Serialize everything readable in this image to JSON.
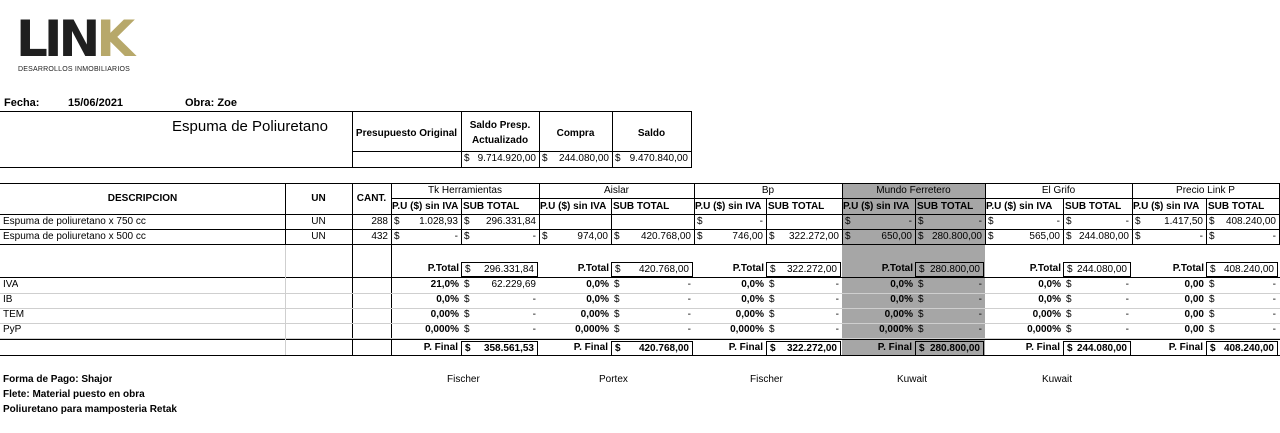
{
  "logo": {
    "brand_main": "LIN",
    "brand_accent": "K",
    "subtitle": "DESARROLLOS INMOBILIARIOS"
  },
  "header": {
    "fecha_label": "Fecha:",
    "fecha_value": "15/06/2021",
    "obra": "Obra: Zoe"
  },
  "title": "Espuma de Poliuretano",
  "budget": {
    "headers": [
      "Presupuesto Original",
      "Saldo Presp. Actualizado",
      "Compra",
      "Saldo"
    ],
    "values": [
      "",
      "9.714.920,00",
      "244.080,00",
      "9.470.840,00"
    ]
  },
  "table": {
    "col_desc": "DESCRIPCION",
    "col_un": "UN",
    "col_cant": "CANT.",
    "sub_pu": "P.U ($) sin IVA",
    "sub_total": "SUB TOTAL",
    "currency": "$",
    "suppliers": [
      "Tk Herramientas",
      "Aislar",
      "Bp",
      "Mundo Ferretero",
      "El Grifo",
      "Precio Link P"
    ],
    "rows": [
      {
        "desc": "Espuma de poliuretano x 750 cc",
        "un": "UN",
        "cant": "288",
        "cells": [
          [
            "1.028,93",
            "296.331,84"
          ],
          [
            "",
            ""
          ],
          [
            "-",
            ""
          ],
          [
            "-",
            "-"
          ],
          [
            "-",
            "-"
          ],
          [
            "1.417,50",
            "408.240,00"
          ]
        ]
      },
      {
        "desc": "Espuma de poliuretano x 500 cc",
        "un": "UN",
        "cant": "432",
        "cells": [
          [
            "-",
            "-"
          ],
          [
            "974,00",
            "420.768,00"
          ],
          [
            "746,00",
            "322.272,00"
          ],
          [
            "650,00",
            "280.800,00"
          ],
          [
            "565,00",
            "244.080,00"
          ],
          [
            "-",
            "-"
          ]
        ]
      }
    ],
    "ptotal_label": "P.Total",
    "ptotals": [
      "296.331,84",
      "420.768,00",
      "322.272,00",
      "280.800,00",
      "244.080,00",
      "408.240,00"
    ],
    "taxes": [
      {
        "name": "IVA",
        "rates": [
          "21,0%",
          "0,0%",
          "0,0%",
          "0,0%",
          "0,0%",
          "0,00"
        ],
        "amounts": [
          "62.229,69",
          "-",
          "-",
          "-",
          "-",
          "-"
        ]
      },
      {
        "name": "IB",
        "rates": [
          "0,0%",
          "0,0%",
          "0,0%",
          "0,0%",
          "0,0%",
          "0,00"
        ],
        "amounts": [
          "-",
          "-",
          "-",
          "-",
          "-",
          "-"
        ]
      },
      {
        "name": "TEM",
        "rates": [
          "0,00%",
          "0,00%",
          "0,00%",
          "0,00%",
          "0,00%",
          "0,00"
        ],
        "amounts": [
          "-",
          "-",
          "-",
          "-",
          "-",
          "-"
        ]
      },
      {
        "name": "PyP",
        "rates": [
          "0,000%",
          "0,000%",
          "0,000%",
          "0,000%",
          "0,000%",
          "0,00"
        ],
        "amounts": [
          "-",
          "-",
          "-",
          "-",
          "-",
          "-"
        ]
      }
    ],
    "pfinal_label": "P. Final",
    "pfinals": [
      "358.561,53",
      "420.768,00",
      "322.272,00",
      "280.800,00",
      "244.080,00",
      "408.240,00"
    ]
  },
  "footer": {
    "forma_pago": "Forma de Pago: Shajor",
    "flete": "Flete: Material puesto en obra",
    "nota": "Poliuretano para mamposteria Retak",
    "brands": [
      "Fischer",
      "Portex",
      "Fischer",
      "Kuwait",
      "Kuwait"
    ]
  }
}
